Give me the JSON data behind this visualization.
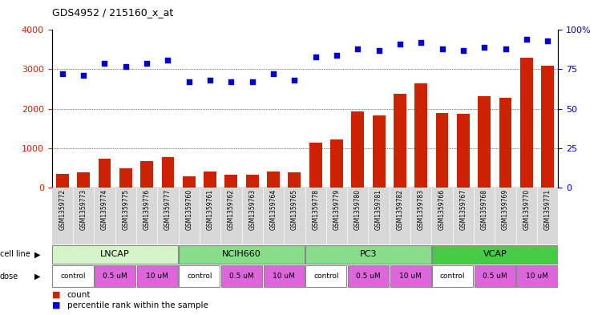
{
  "title": "GDS4952 / 215160_x_at",
  "samples": [
    "GSM1359772",
    "GSM1359773",
    "GSM1359774",
    "GSM1359775",
    "GSM1359776",
    "GSM1359777",
    "GSM1359760",
    "GSM1359761",
    "GSM1359762",
    "GSM1359763",
    "GSM1359764",
    "GSM1359765",
    "GSM1359778",
    "GSM1359779",
    "GSM1359780",
    "GSM1359781",
    "GSM1359782",
    "GSM1359783",
    "GSM1359766",
    "GSM1359767",
    "GSM1359768",
    "GSM1359769",
    "GSM1359770",
    "GSM1359771"
  ],
  "counts": [
    340,
    390,
    730,
    490,
    660,
    780,
    290,
    400,
    320,
    330,
    410,
    390,
    1130,
    1220,
    1930,
    1820,
    2380,
    2640,
    1890,
    1870,
    2310,
    2280,
    3290,
    3090
  ],
  "percentile_ranks": [
    72,
    71,
    79,
    77,
    79,
    81,
    67,
    68,
    67,
    67,
    72,
    68,
    83,
    84,
    88,
    87,
    91,
    92,
    88,
    87,
    89,
    88,
    94,
    93
  ],
  "cell_lines": [
    {
      "name": "LNCAP",
      "start": 0,
      "end": 6,
      "color": "#d5f5c8"
    },
    {
      "name": "NCIH660",
      "start": 6,
      "end": 12,
      "color": "#88dd88"
    },
    {
      "name": "PC3",
      "start": 12,
      "end": 18,
      "color": "#88dd88"
    },
    {
      "name": "VCAP",
      "start": 18,
      "end": 24,
      "color": "#44cc44"
    }
  ],
  "dose_groups": [
    {
      "label": "control",
      "start": 0,
      "end": 2,
      "color": "#ffffff"
    },
    {
      "label": "0.5 uM",
      "start": 2,
      "end": 4,
      "color": "#dd66dd"
    },
    {
      "label": "10 uM",
      "start": 4,
      "end": 6,
      "color": "#dd66dd"
    },
    {
      "label": "control",
      "start": 6,
      "end": 8,
      "color": "#ffffff"
    },
    {
      "label": "0.5 uM",
      "start": 8,
      "end": 10,
      "color": "#dd66dd"
    },
    {
      "label": "10 uM",
      "start": 10,
      "end": 12,
      "color": "#dd66dd"
    },
    {
      "label": "control",
      "start": 12,
      "end": 14,
      "color": "#ffffff"
    },
    {
      "label": "0.5 uM",
      "start": 14,
      "end": 16,
      "color": "#dd66dd"
    },
    {
      "label": "10 uM",
      "start": 16,
      "end": 18,
      "color": "#dd66dd"
    },
    {
      "label": "control",
      "start": 18,
      "end": 20,
      "color": "#ffffff"
    },
    {
      "label": "0.5 uM",
      "start": 20,
      "end": 22,
      "color": "#dd66dd"
    },
    {
      "label": "10 uM",
      "start": 22,
      "end": 24,
      "color": "#dd66dd"
    }
  ],
  "bar_color": "#cc2200",
  "dot_color": "#0000cc",
  "ylim_left": [
    0,
    4000
  ],
  "ylim_right": [
    0,
    100
  ],
  "yticks_left": [
    0,
    1000,
    2000,
    3000,
    4000
  ],
  "yticks_right": [
    0,
    25,
    50,
    75,
    100
  ],
  "ytick_labels_right": [
    "0",
    "25",
    "50",
    "75",
    "100%"
  ],
  "grid_values": [
    1000,
    2000,
    3000
  ],
  "plot_bg": "#ffffff",
  "xticklabel_bg": "#d8d8d8"
}
